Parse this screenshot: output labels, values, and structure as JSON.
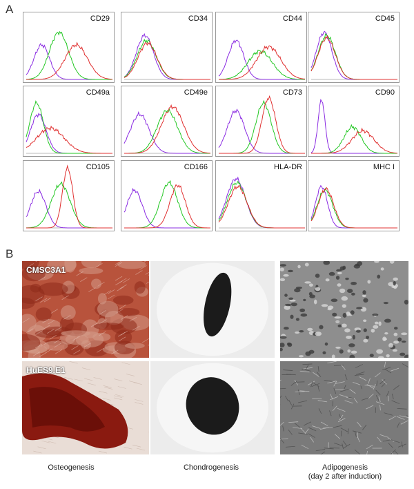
{
  "panel_a": {
    "letter": "A",
    "markers": [
      "CD29",
      "CD34",
      "CD44",
      "CD45",
      "CD49a",
      "CD49e",
      "CD73",
      "CD90",
      "CD105",
      "CD166",
      "HLA-DR",
      "MHC I"
    ],
    "series_colors": {
      "isotype": "#8a2be2",
      "line1": "#22c722",
      "line2": "#e03030"
    }
  },
  "panel_b": {
    "letter": "B",
    "cell_lines": [
      "CMSC3A1",
      "HuES9.E1"
    ],
    "columns": [
      {
        "label": "Osteogenesis",
        "sublabel": ""
      },
      {
        "label": "Chondrogenesis",
        "sublabel": ""
      },
      {
        "label": "Adipogenesis",
        "sublabel": "(day 2 after induction)"
      }
    ]
  }
}
